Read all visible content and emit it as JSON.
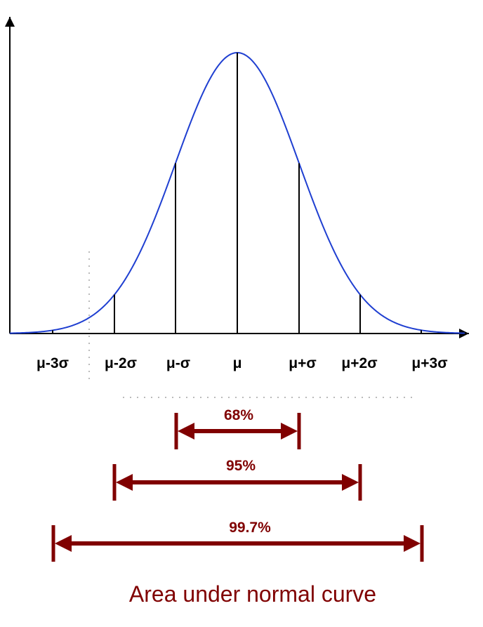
{
  "diagram": {
    "tick_labels": [
      "μ-3σ",
      "μ-2σ",
      "μ-σ",
      "μ",
      "μ+σ",
      "μ+2σ",
      "μ+3σ"
    ],
    "ranges": [
      {
        "label": "68%",
        "from_sigma": -1,
        "to_sigma": 1
      },
      {
        "label": "95%",
        "from_sigma": -2,
        "to_sigma": 2
      },
      {
        "label": "99.7%",
        "from_sigma": -3,
        "to_sigma": 3
      }
    ],
    "caption": "Area under normal curve",
    "colors": {
      "curve": "#1f3fd1",
      "arrows": "#800000",
      "axes": "#000000",
      "guides": "#bbbbbb"
    }
  }
}
